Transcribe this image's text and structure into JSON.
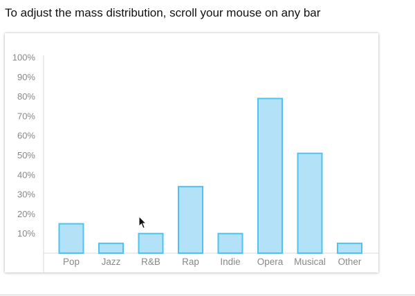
{
  "instruction": "To adjust the mass distribution, scroll your mouse on any bar",
  "colors": {
    "bar_fill": "#b3e2f8",
    "bar_stroke": "#4ec3ee",
    "axis": "#d9d9d9",
    "label": "#888888"
  },
  "chart_data": {
    "type": "bar",
    "categories": [
      "Pop",
      "Jazz",
      "R&B",
      "Rap",
      "Indie",
      "Opera",
      "Musical",
      "Other"
    ],
    "values": [
      15,
      5,
      10,
      34,
      10,
      79,
      51,
      5
    ],
    "yticks": [
      "10%",
      "20%",
      "30%",
      "40%",
      "50%",
      "60%",
      "70%",
      "80%",
      "90%",
      "100%"
    ],
    "ylim": [
      0,
      100
    ],
    "title": "",
    "xlabel": "",
    "ylabel": "",
    "grid": false,
    "legend": "none"
  }
}
